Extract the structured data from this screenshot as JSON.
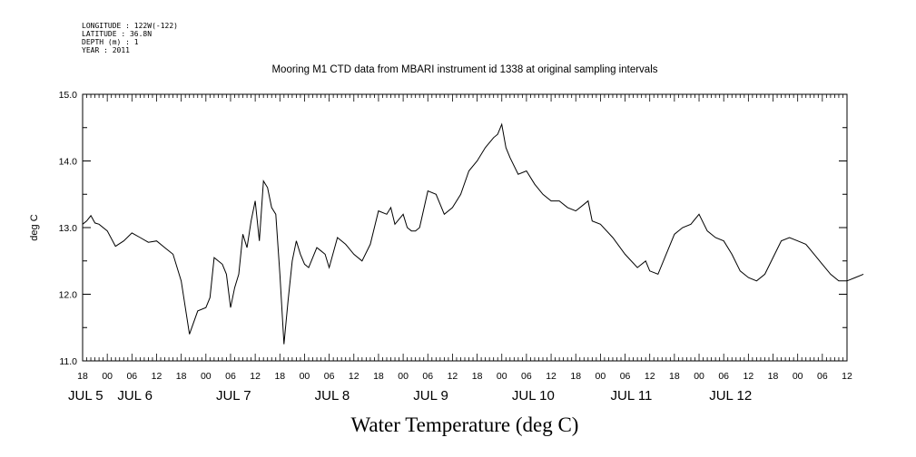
{
  "header": {
    "longitude": "LONGITUDE : 122W(-122)",
    "latitude": "LATITUDE : 36.8N",
    "depth": "DEPTH (m) : 1",
    "year": "YEAR : 2011"
  },
  "chart_data": {
    "type": "line",
    "title": "Mooring M1 CTD data from MBARI instrument id 1338 at original sampling intervals",
    "xlabel": "Water Temperature (deg C)",
    "ylabel": "deg C",
    "xlim": [
      "2011-07-04T18:00",
      "2011-07-12T12:00"
    ],
    "ylim": [
      11.0,
      15.0
    ],
    "y_ticks": [
      "11.0",
      "12.0",
      "13.0",
      "14.0",
      "15.0"
    ],
    "x_hour_ticks": [
      "18",
      "00",
      "06",
      "12",
      "18",
      "00",
      "06",
      "12",
      "18",
      "00",
      "06",
      "12",
      "18",
      "00",
      "06",
      "12",
      "18",
      "00",
      "06",
      "12",
      "18",
      "00",
      "06",
      "12",
      "18",
      "00",
      "06",
      "12",
      "18",
      "00",
      "06",
      "12"
    ],
    "x_day_labels": [
      "JUL  5",
      "JUL  6",
      "JUL  7",
      "JUL  8",
      "JUL  9",
      "JUL 10",
      "JUL 11",
      "JUL 12"
    ],
    "grid": false,
    "line_color": "#000000",
    "series": [
      {
        "x": [
          "2011-07-04T18:00",
          "2011-07-04T19:00",
          "2011-07-04T20:00",
          "2011-07-04T21:00",
          "2011-07-04T22:00",
          "2011-07-05T00:00",
          "2011-07-05T02:00",
          "2011-07-05T04:00",
          "2011-07-05T06:00",
          "2011-07-05T08:00",
          "2011-07-05T10:00",
          "2011-07-05T12:00",
          "2011-07-05T14:00",
          "2011-07-05T16:00",
          "2011-07-05T18:00",
          "2011-07-05T20:00",
          "2011-07-05T22:00",
          "2011-07-06T00:00",
          "2011-07-06T01:00",
          "2011-07-06T02:00",
          "2011-07-06T03:00",
          "2011-07-06T04:00",
          "2011-07-06T05:00",
          "2011-07-06T06:00",
          "2011-07-06T07:00",
          "2011-07-06T08:00",
          "2011-07-06T09:00",
          "2011-07-06T10:00",
          "2011-07-06T11:00",
          "2011-07-06T12:00",
          "2011-07-06T13:00",
          "2011-07-06T14:00",
          "2011-07-06T15:00",
          "2011-07-06T16:00",
          "2011-07-06T17:00",
          "2011-07-06T18:00",
          "2011-07-06T19:00",
          "2011-07-06T20:00",
          "2011-07-06T21:00",
          "2011-07-06T22:00",
          "2011-07-06T23:00",
          "2011-07-07T00:00",
          "2011-07-07T01:00",
          "2011-07-07T02:00",
          "2011-07-07T03:00",
          "2011-07-07T04:00",
          "2011-07-07T05:00",
          "2011-07-07T06:00",
          "2011-07-07T08:00",
          "2011-07-07T10:00",
          "2011-07-07T12:00",
          "2011-07-07T14:00",
          "2011-07-07T16:00",
          "2011-07-07T18:00",
          "2011-07-07T20:00",
          "2011-07-07T21:00",
          "2011-07-07T22:00",
          "2011-07-08T00:00",
          "2011-07-08T01:00",
          "2011-07-08T02:00",
          "2011-07-08T03:00",
          "2011-07-08T04:00",
          "2011-07-08T06:00",
          "2011-07-08T08:00",
          "2011-07-08T10:00",
          "2011-07-08T12:00",
          "2011-07-08T14:00",
          "2011-07-08T16:00",
          "2011-07-08T18:00",
          "2011-07-08T20:00",
          "2011-07-08T22:00",
          "2011-07-08T23:00",
          "2011-07-09T00:00",
          "2011-07-09T01:00",
          "2011-07-09T02:00",
          "2011-07-09T04:00",
          "2011-07-09T06:00",
          "2011-07-09T08:00",
          "2011-07-09T10:00",
          "2011-07-09T12:00",
          "2011-07-09T14:00",
          "2011-07-09T16:00",
          "2011-07-09T18:00",
          "2011-07-09T20:00",
          "2011-07-09T21:00",
          "2011-07-09T22:00",
          "2011-07-10T00:00",
          "2011-07-10T03:00",
          "2011-07-10T06:00",
          "2011-07-10T09:00",
          "2011-07-10T11:00",
          "2011-07-10T12:00",
          "2011-07-10T14:00",
          "2011-07-10T16:00",
          "2011-07-10T18:00",
          "2011-07-10T20:00",
          "2011-07-10T22:00",
          "2011-07-11T00:00",
          "2011-07-11T02:00",
          "2011-07-11T04:00",
          "2011-07-11T06:00",
          "2011-07-11T08:00",
          "2011-07-11T10:00",
          "2011-07-11T12:00",
          "2011-07-11T14:00",
          "2011-07-11T16:00",
          "2011-07-11T18:00",
          "2011-07-11T20:00",
          "2011-07-11T22:00",
          "2011-07-12T00:00",
          "2011-07-12T02:00",
          "2011-07-12T04:00",
          "2011-07-12T06:00",
          "2011-07-12T08:00",
          "2011-07-12T10:00",
          "2011-07-12T12:00",
          "2011-07-12T14:00",
          "2011-07-12T16:00"
        ],
        "values": [
          13.05,
          13.1,
          13.18,
          13.07,
          13.05,
          12.95,
          12.72,
          12.8,
          12.92,
          12.85,
          12.78,
          12.8,
          12.7,
          12.6,
          12.2,
          11.4,
          11.75,
          11.8,
          11.95,
          12.55,
          12.5,
          12.45,
          12.3,
          11.8,
          12.1,
          12.3,
          12.9,
          12.7,
          13.1,
          13.4,
          12.8,
          13.7,
          13.6,
          13.3,
          13.2,
          12.3,
          11.25,
          11.9,
          12.5,
          12.8,
          12.6,
          12.45,
          12.4,
          12.55,
          12.7,
          12.65,
          12.6,
          12.4,
          12.85,
          12.75,
          12.6,
          12.5,
          12.75,
          13.25,
          13.2,
          13.3,
          13.05,
          13.2,
          13.0,
          12.95,
          12.95,
          13.0,
          13.55,
          13.5,
          13.2,
          13.3,
          13.5,
          13.85,
          14.0,
          14.2,
          14.35,
          14.4,
          14.55,
          14.2,
          14.05,
          13.8,
          13.85,
          13.65,
          13.5,
          13.4,
          13.4,
          13.3,
          13.25,
          13.35,
          13.4,
          13.1,
          13.05,
          12.85,
          12.6,
          12.4,
          12.5,
          12.35,
          12.3,
          12.6,
          12.9,
          13.0,
          13.05,
          13.2,
          12.95,
          12.85,
          12.8,
          12.6,
          12.35,
          12.25,
          12.2,
          12.3,
          12.55,
          12.8,
          12.85,
          12.8,
          12.75,
          12.6,
          12.45,
          12.3,
          12.2,
          12.2,
          12.25,
          12.3
        ]
      }
    ]
  }
}
